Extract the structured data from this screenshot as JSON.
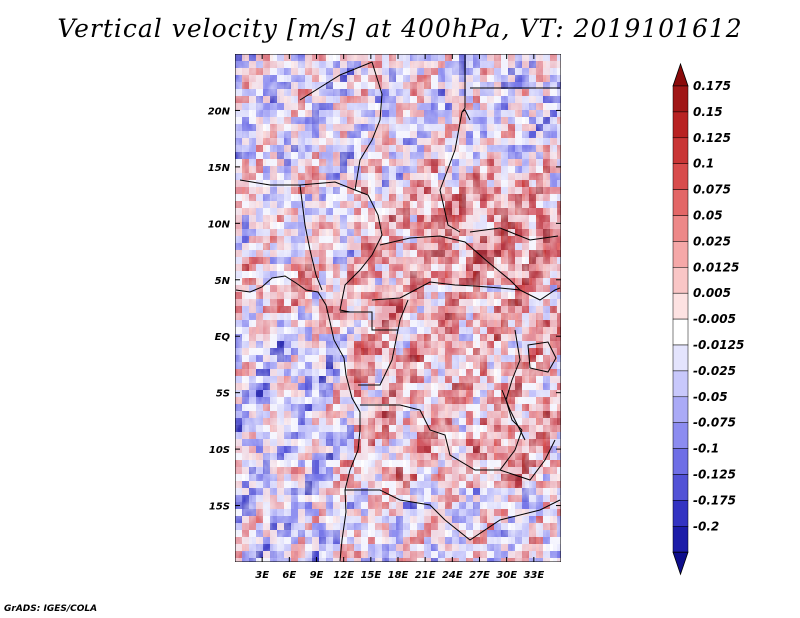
{
  "title": "Vertical velocity [m/s] at 400hPa, VT: 2019101612",
  "footer": "GrADS: IGES/COLA",
  "map": {
    "lon_range": [
      0,
      36
    ],
    "lat_range": [
      -20,
      25
    ],
    "lon_ticks": [
      {
        "value": 3,
        "label": "3E"
      },
      {
        "value": 6,
        "label": "6E"
      },
      {
        "value": 9,
        "label": "9E"
      },
      {
        "value": 12,
        "label": "12E"
      },
      {
        "value": 15,
        "label": "15E"
      },
      {
        "value": 18,
        "label": "18E"
      },
      {
        "value": 21,
        "label": "21E"
      },
      {
        "value": 24,
        "label": "24E"
      },
      {
        "value": 27,
        "label": "27E"
      },
      {
        "value": 30,
        "label": "30E"
      },
      {
        "value": 33,
        "label": "33E"
      }
    ],
    "lat_ticks": [
      {
        "value": 20,
        "label": "20N"
      },
      {
        "value": 15,
        "label": "15N"
      },
      {
        "value": 10,
        "label": "10N"
      },
      {
        "value": 5,
        "label": "5N"
      },
      {
        "value": 0,
        "label": "EQ"
      },
      {
        "value": -5,
        "label": "5S"
      },
      {
        "value": -10,
        "label": "10S"
      },
      {
        "value": -15,
        "label": "15S"
      }
    ]
  },
  "colorbar": {
    "levels": [
      {
        "label": "0.175",
        "color": "#a01616"
      },
      {
        "label": "0.15",
        "color": "#b82222"
      },
      {
        "label": "0.125",
        "color": "#c93636"
      },
      {
        "label": "0.1",
        "color": "#d84c4c"
      },
      {
        "label": "0.075",
        "color": "#e36767"
      },
      {
        "label": "0.05",
        "color": "#ed8888"
      },
      {
        "label": "0.025",
        "color": "#f5a8a8"
      },
      {
        "label": "0.0125",
        "color": "#f9c6c6"
      },
      {
        "label": "0.005",
        "color": "#fde2e2"
      },
      {
        "label": "-0.005",
        "color": "#ffffff"
      },
      {
        "label": "-0.0125",
        "color": "#e4e4fd"
      },
      {
        "label": "-0.025",
        "color": "#c8c8fb"
      },
      {
        "label": "-0.05",
        "color": "#aaaaf6"
      },
      {
        "label": "-0.075",
        "color": "#8c8cf0"
      },
      {
        "label": "-0.1",
        "color": "#6f6fe6"
      },
      {
        "label": "-0.125",
        "color": "#5252d6"
      },
      {
        "label": "-0.175",
        "color": "#3333c2"
      },
      {
        "label": "-0.2",
        "color": "#1c1ca8"
      }
    ],
    "top_color": "#8a0a0a",
    "bottom_color": "#0e0e8c"
  }
}
